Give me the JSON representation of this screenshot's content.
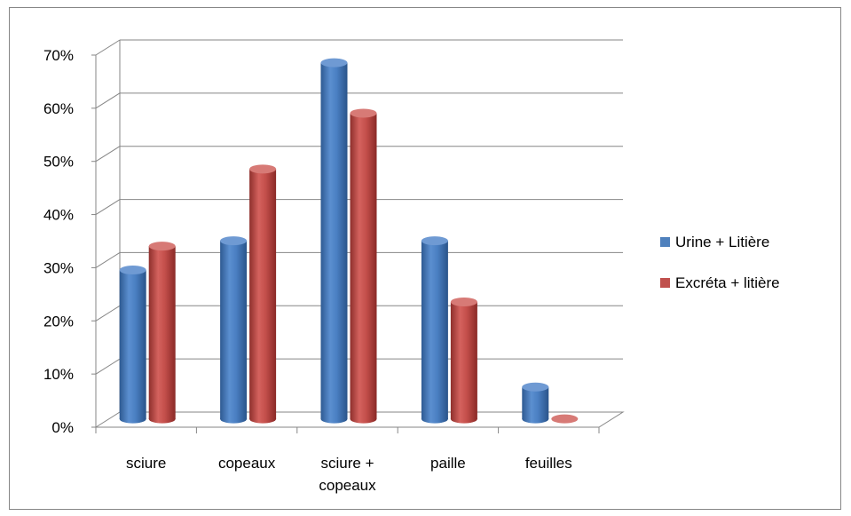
{
  "chart_data": {
    "type": "bar",
    "categories": [
      [
        "sciure"
      ],
      [
        "copeaux"
      ],
      [
        "sciure +",
        "copeaux"
      ],
      [
        "paille"
      ],
      [
        "feuilles"
      ]
    ],
    "series": [
      {
        "name": "Urine + Litière",
        "values": [
          0.28,
          0.335,
          0.67,
          0.335,
          0.06
        ],
        "color": "#4F81BD"
      },
      {
        "name": "Excréta + litière",
        "values": [
          0.325,
          0.47,
          0.575,
          0.22,
          0.0
        ],
        "color": "#C0504D"
      }
    ],
    "y_ticks": [
      "0%",
      "10%",
      "20%",
      "30%",
      "40%",
      "50%",
      "60%",
      "70%"
    ],
    "ylim": [
      0,
      0.7
    ],
    "grid": true,
    "legend_position": "right"
  }
}
